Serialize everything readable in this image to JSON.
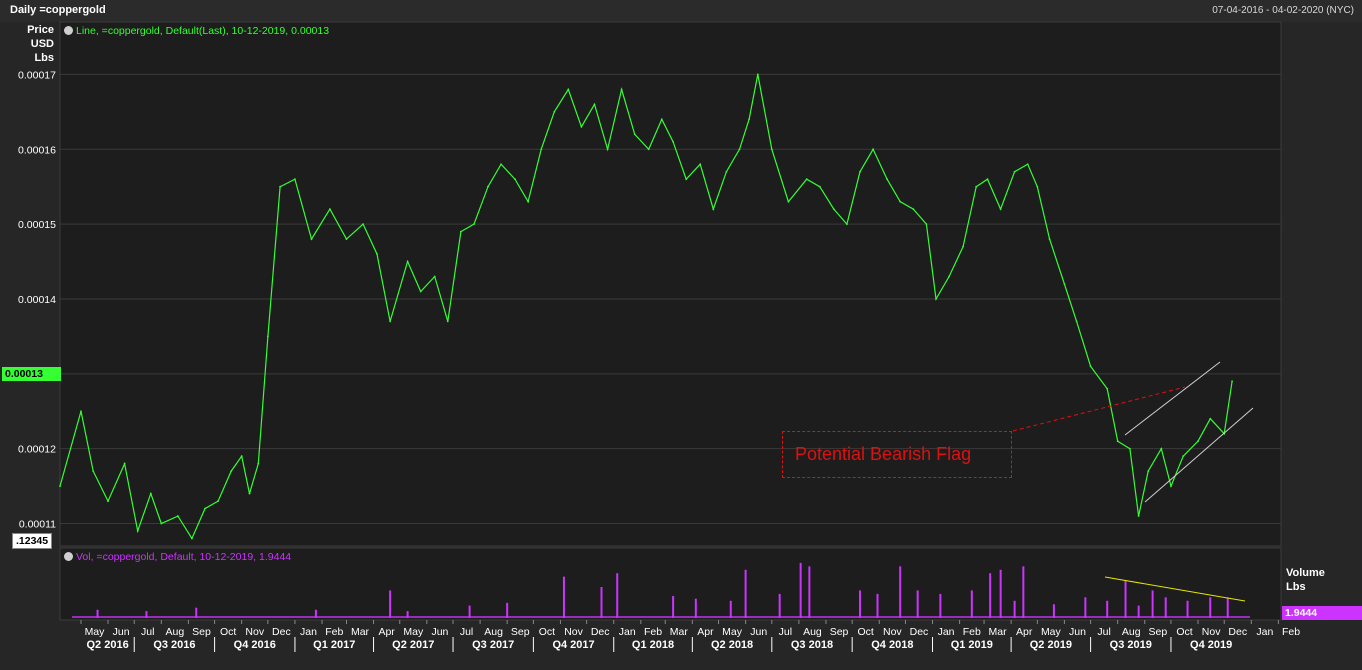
{
  "header": {
    "title": "Daily =coppergold",
    "date_range": "07-04-2016 - 04-02-2020 (NYC)"
  },
  "price_panel": {
    "unit_label": [
      "Price",
      "USD",
      "Lbs"
    ],
    "legend": "Line, =coppergold, Default(Last), 10-12-2019, 0.00013",
    "last_value_box": "0.00013",
    "bottom_box": ".12345",
    "line_color": "#33ff33",
    "annotation": {
      "text": "Potential Bearish Flag",
      "color": "#e01010"
    }
  },
  "volume_panel": {
    "legend": "Vol, =coppergold, Default, 10-12-2019, 1.9444",
    "unit_label": [
      "Volume",
      "Lbs"
    ],
    "last_value_box": "1.9444",
    "bar_color": "#cc33ff",
    "trendline_color": "#e5e600"
  },
  "x_axis": {
    "months": [
      "May",
      "Jun",
      "Jul",
      "Aug",
      "Sep",
      "Oct",
      "Nov",
      "Dec",
      "Jan",
      "Feb",
      "Mar",
      "Apr",
      "May",
      "Jun",
      "Jul",
      "Aug",
      "Sep",
      "Oct",
      "Nov",
      "Dec",
      "Jan",
      "Feb",
      "Mar",
      "Apr",
      "May",
      "Jun",
      "Jul",
      "Aug",
      "Sep",
      "Oct",
      "Nov",
      "Dec",
      "Jan",
      "Feb",
      "Mar",
      "Apr",
      "May",
      "Jun",
      "Jul",
      "Aug",
      "Sep",
      "Oct",
      "Nov",
      "Dec",
      "Jan",
      "Feb"
    ],
    "quarters": [
      "Q2 2016",
      "Q3 2016",
      "Q4 2016",
      "Q1 2017",
      "Q2 2017",
      "Q3 2017",
      "Q4 2017",
      "Q1 2018",
      "Q2 2018",
      "Q3 2018",
      "Q4 2018",
      "Q1 2019",
      "Q2 2019",
      "Q3 2019",
      "Q4 2019"
    ]
  },
  "chart_data": [
    {
      "type": "line",
      "series": [
        {
          "name": "=coppergold",
          "x": [
            "2016-04-07",
            "2016-05-01",
            "2016-05-15",
            "2016-06-01",
            "2016-06-20",
            "2016-07-05",
            "2016-07-20",
            "2016-08-01",
            "2016-08-20",
            "2016-09-05",
            "2016-09-20",
            "2016-10-05",
            "2016-10-20",
            "2016-11-01",
            "2016-11-10",
            "2016-11-20",
            "2016-12-01",
            "2016-12-15",
            "2017-01-01",
            "2017-01-20",
            "2017-02-10",
            "2017-03-01",
            "2017-03-20",
            "2017-04-05",
            "2017-04-20",
            "2017-05-10",
            "2017-05-25",
            "2017-06-10",
            "2017-06-25",
            "2017-07-10",
            "2017-07-25",
            "2017-08-10",
            "2017-08-25",
            "2017-09-10",
            "2017-09-25",
            "2017-10-10",
            "2017-10-25",
            "2017-11-10",
            "2017-11-25",
            "2017-12-10",
            "2017-12-25",
            "2018-01-10",
            "2018-01-25",
            "2018-02-10",
            "2018-02-25",
            "2018-03-10",
            "2018-03-25",
            "2018-04-10",
            "2018-04-25",
            "2018-05-10",
            "2018-05-25",
            "2018-06-05",
            "2018-06-15",
            "2018-07-01",
            "2018-07-20",
            "2018-08-10",
            "2018-08-25",
            "2018-09-10",
            "2018-09-25",
            "2018-10-10",
            "2018-10-25",
            "2018-11-10",
            "2018-11-25",
            "2018-12-10",
            "2018-12-25",
            "2019-01-05",
            "2019-01-20",
            "2019-02-05",
            "2019-02-20",
            "2019-03-05",
            "2019-03-20",
            "2019-04-05",
            "2019-04-20",
            "2019-05-01",
            "2019-05-15",
            "2019-06-01",
            "2019-06-15",
            "2019-07-01",
            "2019-07-20",
            "2019-08-01",
            "2019-08-15",
            "2019-08-25",
            "2019-09-05",
            "2019-09-20",
            "2019-10-01",
            "2019-10-15",
            "2019-11-01",
            "2019-11-15",
            "2019-12-01",
            "2019-12-10"
          ],
          "y": [
            0.000115,
            0.000125,
            0.000117,
            0.000113,
            0.000118,
            0.000109,
            0.000114,
            0.00011,
            0.000111,
            0.000108,
            0.000112,
            0.000113,
            0.000117,
            0.000119,
            0.000114,
            0.000118,
            0.000135,
            0.000155,
            0.000156,
            0.000148,
            0.000152,
            0.000148,
            0.00015,
            0.000146,
            0.000137,
            0.000145,
            0.000141,
            0.000143,
            0.000137,
            0.000149,
            0.00015,
            0.000155,
            0.000158,
            0.000156,
            0.000153,
            0.00016,
            0.000165,
            0.000168,
            0.000163,
            0.000166,
            0.00016,
            0.000168,
            0.000162,
            0.00016,
            0.000164,
            0.000161,
            0.000156,
            0.000158,
            0.000152,
            0.000157,
            0.00016,
            0.000164,
            0.00017,
            0.00016,
            0.000153,
            0.000156,
            0.000155,
            0.000152,
            0.00015,
            0.000157,
            0.00016,
            0.000156,
            0.000153,
            0.000152,
            0.00015,
            0.00014,
            0.000143,
            0.000147,
            0.000155,
            0.000156,
            0.000152,
            0.000157,
            0.000158,
            0.000155,
            0.000148,
            0.000142,
            0.000137,
            0.000131,
            0.000128,
            0.000121,
            0.00012,
            0.000111,
            0.000117,
            0.00012,
            0.000115,
            0.000119,
            0.000121,
            0.000124,
            0.000122,
            0.000129
          ]
        }
      ],
      "ylabel": "Price USD Lbs",
      "ylim": [
        0.000107,
        0.000177
      ],
      "yticks": [
        "0.00011",
        "0.00012",
        "0.00013",
        "0.00014",
        "0.00015",
        "0.00016",
        "0.00017"
      ],
      "xlim": [
        "2016-04-07",
        "2020-02-04"
      ],
      "grid": true
    },
    {
      "type": "bar",
      "series": [
        {
          "name": "=coppergold",
          "x": [
            "2016-05-20",
            "2016-07-15",
            "2016-09-10",
            "2017-01-25",
            "2017-04-20",
            "2017-05-10",
            "2017-07-20",
            "2017-09-01",
            "2017-11-05",
            "2017-12-18",
            "2018-01-05",
            "2018-03-10",
            "2018-04-05",
            "2018-05-15",
            "2018-06-01",
            "2018-07-10",
            "2018-08-03",
            "2018-08-13",
            "2018-10-10",
            "2018-10-30",
            "2018-11-25",
            "2018-12-15",
            "2019-01-10",
            "2019-02-15",
            "2019-03-08",
            "2019-03-20",
            "2019-04-05",
            "2019-04-15",
            "2019-05-20",
            "2019-06-25",
            "2019-07-20",
            "2019-08-10",
            "2019-08-25",
            "2019-09-10",
            "2019-09-25",
            "2019-10-20",
            "2019-11-15",
            "2019-12-05"
          ],
          "values": [
            1.2,
            1.0,
            1.5,
            1.2,
            4.0,
            1.0,
            1.8,
            2.2,
            6.0,
            4.5,
            6.5,
            3.2,
            2.8,
            2.5,
            7.0,
            3.5,
            8.0,
            7.5,
            4.0,
            3.5,
            7.5,
            4.0,
            3.5,
            4.0,
            6.5,
            7.0,
            2.5,
            7.5,
            2.0,
            3.0,
            2.5,
            5.5,
            1.8,
            4.0,
            3.0,
            2.5,
            3.0,
            3.0
          ]
        }
      ],
      "ylabel": "Volume Lbs",
      "ylim": [
        0,
        9
      ],
      "last_value": 1.9444
    }
  ]
}
